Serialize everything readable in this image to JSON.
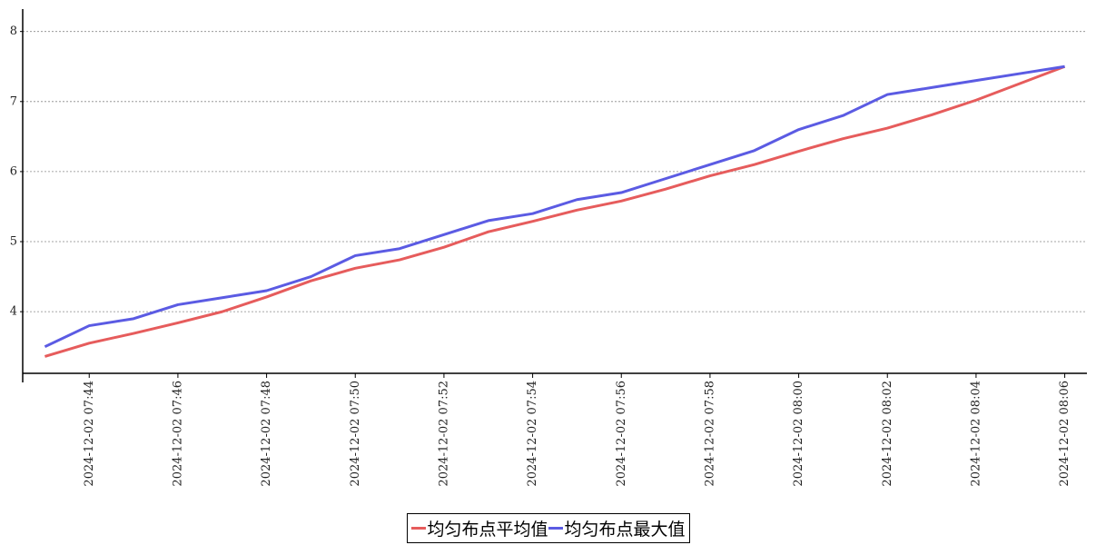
{
  "chart_data": {
    "type": "line",
    "categories": [
      null,
      "2024-12-02 07:44",
      null,
      "2024-12-02 07:46",
      null,
      "2024-12-02 07:48",
      null,
      "2024-12-02 07:50",
      null,
      "2024-12-02 07:52",
      null,
      "2024-12-02 07:54",
      null,
      "2024-12-02 07:56",
      null,
      "2024-12-02 07:58",
      null,
      "2024-12-02 08:00",
      null,
      "2024-12-02 08:02",
      null,
      "2024-12-02 08:04",
      null,
      "2024-12-02 08:06"
    ],
    "series": [
      {
        "name": "均匀布点平均值",
        "color": "#e65c5c",
        "values": [
          3.36,
          3.55,
          3.69,
          3.84,
          4.0,
          4.21,
          4.44,
          4.62,
          4.74,
          4.92,
          5.14,
          5.29,
          5.45,
          5.58,
          5.75,
          5.94,
          6.1,
          6.29,
          6.47,
          6.62,
          6.81,
          7.02,
          7.26,
          7.5
        ]
      },
      {
        "name": "均匀布点最大值",
        "color": "#5b5be3",
        "values": [
          3.5,
          3.8,
          3.9,
          4.1,
          4.2,
          4.3,
          4.5,
          4.8,
          4.9,
          5.1,
          5.3,
          5.4,
          5.6,
          5.7,
          5.9,
          6.1,
          6.3,
          6.6,
          6.8,
          7.1,
          7.2,
          7.3,
          7.4,
          7.5
        ]
      }
    ],
    "ylim": [
      3.12,
      8.32
    ],
    "yticks": [
      4,
      5,
      6,
      7,
      8
    ],
    "grid": true,
    "legend": "bottom"
  }
}
